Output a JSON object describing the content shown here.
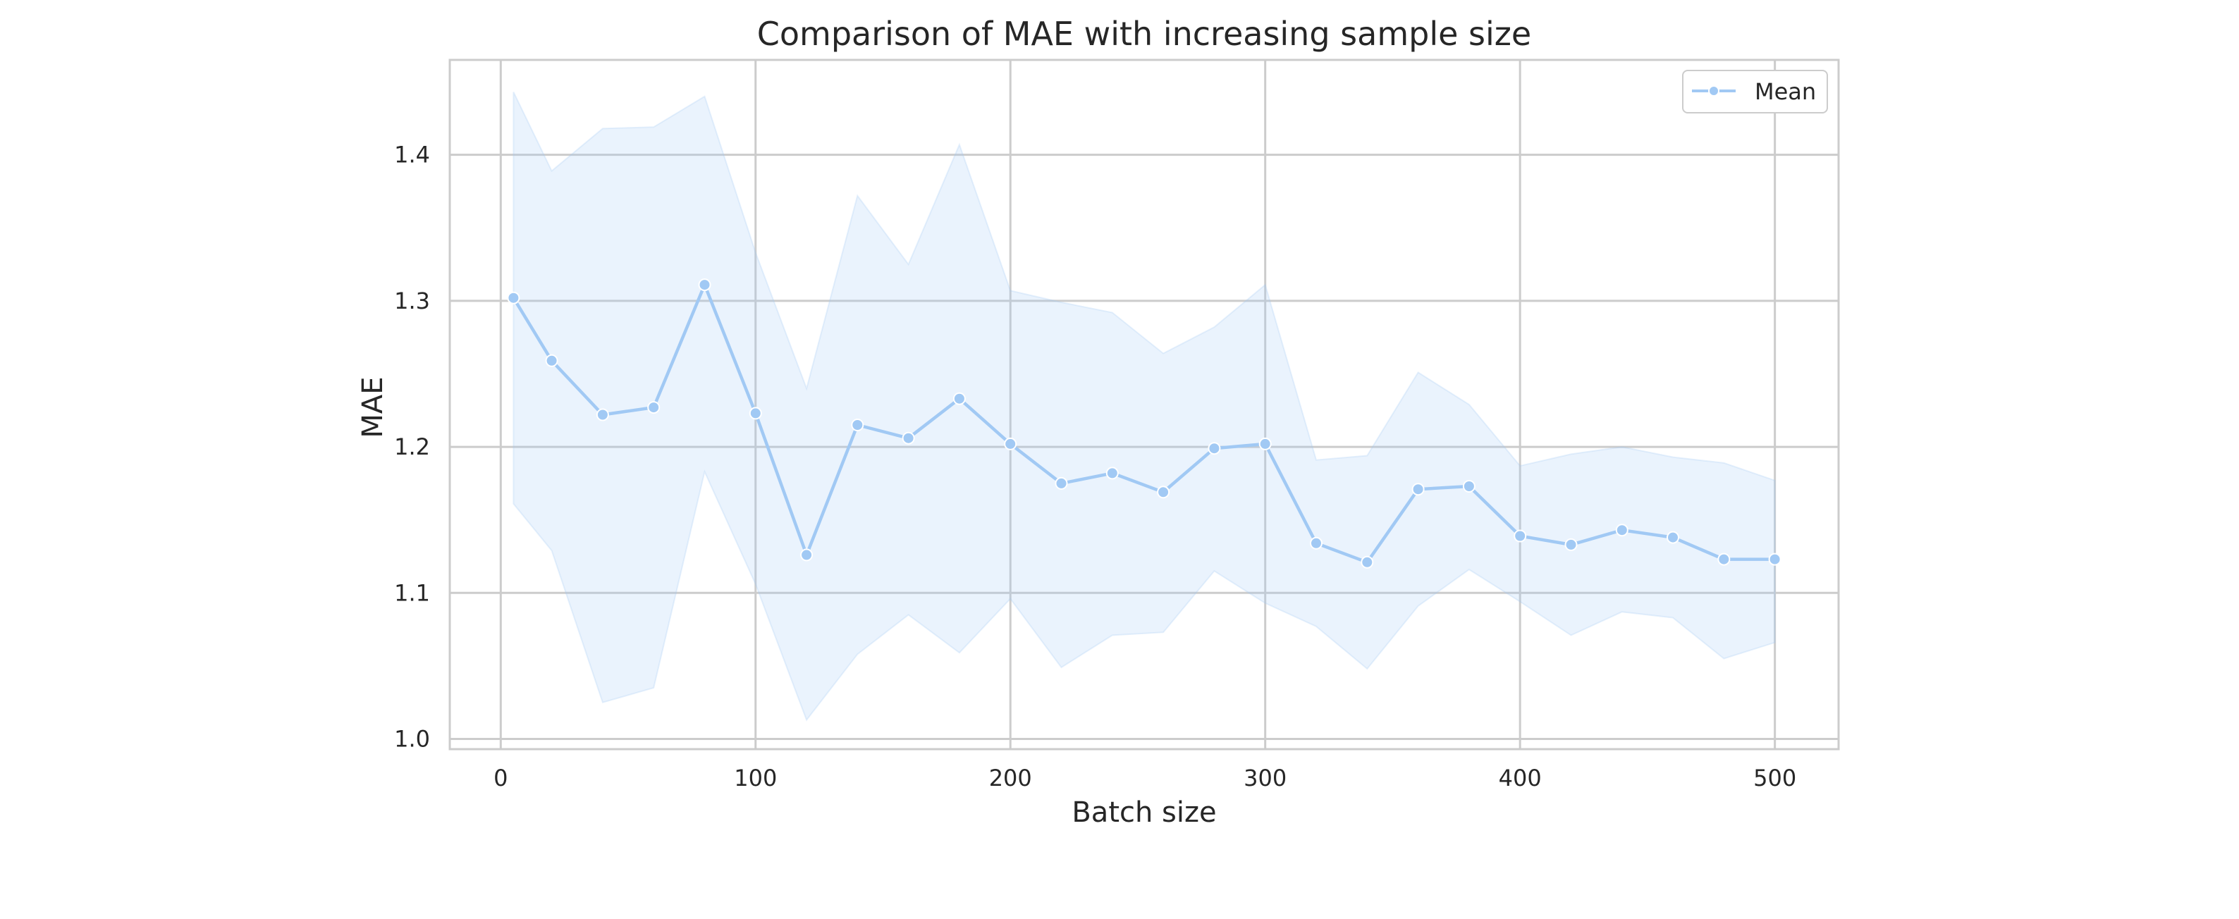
{
  "chart_data": {
    "type": "line",
    "title": "Comparison of MAE with increasing sample size",
    "xlabel": "Batch size",
    "ylabel": "MAE",
    "xlim": [
      -20,
      525
    ],
    "ylim": [
      0.993,
      1.465
    ],
    "xticks": [
      0,
      100,
      200,
      300,
      400,
      500
    ],
    "yticks": [
      1.0,
      1.1,
      1.2,
      1.3,
      1.4
    ],
    "xtick_labels": [
      "0",
      "100",
      "200",
      "300",
      "400",
      "500"
    ],
    "ytick_labels": [
      "1.0",
      "1.1",
      "1.2",
      "1.3",
      "1.4"
    ],
    "grid": true,
    "legend_position": "top-right",
    "series": [
      {
        "name": "Mean",
        "color": "#a1c9f4",
        "marker": "circle",
        "x": [
          5,
          20,
          40,
          60,
          80,
          100,
          120,
          140,
          160,
          180,
          200,
          220,
          240,
          260,
          280,
          300,
          320,
          340,
          360,
          380,
          400,
          420,
          440,
          460,
          480,
          500
        ],
        "y": [
          1.302,
          1.259,
          1.222,
          1.227,
          1.311,
          1.223,
          1.126,
          1.215,
          1.206,
          1.233,
          1.202,
          1.175,
          1.182,
          1.169,
          1.199,
          1.202,
          1.134,
          1.121,
          1.171,
          1.173,
          1.139,
          1.133,
          1.143,
          1.138,
          1.123,
          1.123
        ],
        "band_lower": [
          1.161,
          1.129,
          1.025,
          1.035,
          1.183,
          1.106,
          1.013,
          1.058,
          1.085,
          1.059,
          1.096,
          1.049,
          1.071,
          1.073,
          1.115,
          1.093,
          1.077,
          1.048,
          1.091,
          1.116,
          1.094,
          1.071,
          1.087,
          1.083,
          1.055,
          1.066
        ],
        "band_upper": [
          1.443,
          1.389,
          1.418,
          1.419,
          1.44,
          1.333,
          1.24,
          1.372,
          1.325,
          1.407,
          1.307,
          1.299,
          1.292,
          1.264,
          1.282,
          1.311,
          1.191,
          1.194,
          1.251,
          1.229,
          1.187,
          1.195,
          1.2,
          1.193,
          1.189,
          1.177
        ]
      }
    ]
  }
}
